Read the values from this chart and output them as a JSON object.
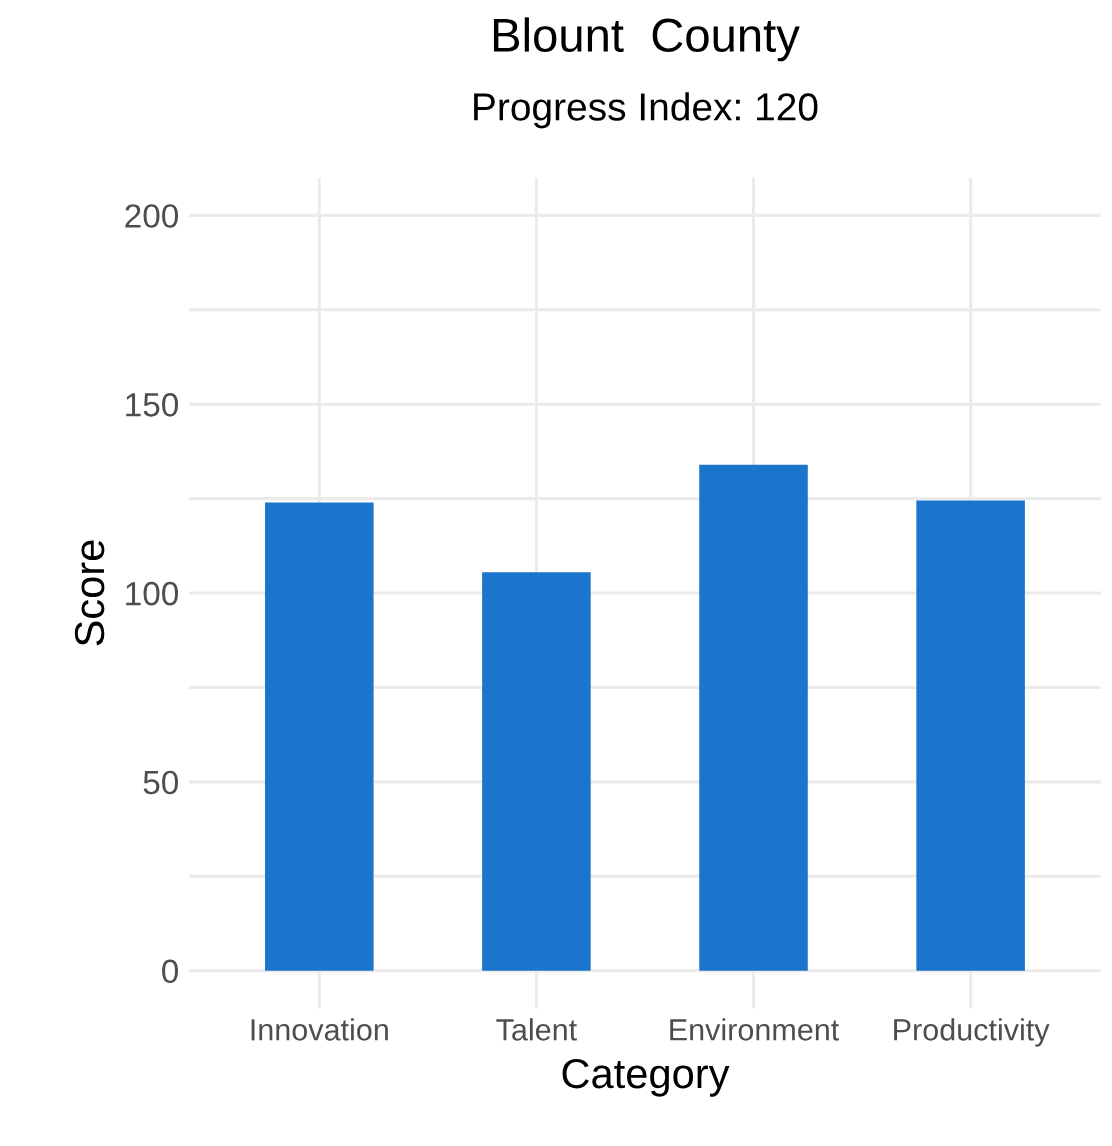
{
  "chart_data": {
    "type": "bar",
    "title": "Blount  County",
    "subtitle": "Progress Index: 120",
    "xlabel": "Category",
    "ylabel": "Score",
    "categories": [
      "Innovation",
      "Talent",
      "Environment",
      "Productivity"
    ],
    "values": [
      124,
      105.5,
      134,
      124.5
    ],
    "color": "#1b75cc",
    "ylim": [
      -10,
      210
    ],
    "yticks": [
      0,
      {
        "value": 25,
        "label": null
      },
      50,
      {
        "value": 75,
        "label": null
      },
      100,
      {
        "value": 125,
        "label": null
      },
      150,
      {
        "value": 175,
        "label": null
      },
      200
    ],
    "grid": true
  }
}
